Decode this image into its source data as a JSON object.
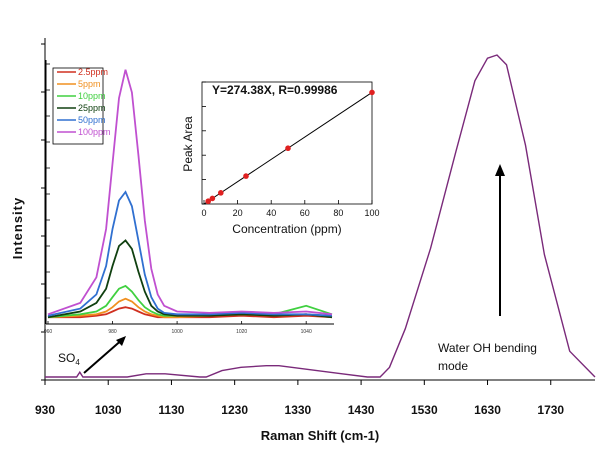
{
  "chart_data": [
    {
      "type": "line",
      "title": "",
      "xlabel": "Raman Shift (cm-1)",
      "ylabel": "Intensity",
      "xlim": [
        930,
        1800
      ],
      "x_ticks": [
        "930",
        "1030",
        "1130",
        "1230",
        "1330",
        "1430",
        "1530",
        "1630",
        "1730"
      ],
      "series": [
        {
          "x": [
            930,
            980,
            985,
            990,
            1000,
            1060,
            1090,
            1120,
            1175,
            1185,
            1210,
            1240,
            1280,
            1300,
            1320,
            1360,
            1400,
            1440,
            1460,
            1475,
            1500,
            1540,
            1580,
            1610,
            1630,
            1645,
            1660,
            1690,
            1720,
            1760,
            1800
          ],
          "y": [
            0.0,
            0.0,
            0.015,
            0.0,
            0.0,
            0.0,
            0.01,
            0.01,
            0.0,
            0.0,
            0.02,
            0.03,
            0.035,
            0.035,
            0.03,
            0.02,
            0.01,
            0.0,
            0.0,
            0.03,
            0.15,
            0.4,
            0.7,
            0.92,
            0.99,
            1.0,
            0.97,
            0.72,
            0.38,
            0.08,
            0.0
          ]
        }
      ],
      "annotations": [
        {
          "text": "SO",
          "sub": "4",
          "x": 985
        },
        {
          "text": "Water OH bending mode",
          "lines": [
            "Water OH bending",
            "mode"
          ],
          "x": 1640
        }
      ],
      "colors": {
        "main": "#7a2a7a",
        "arrow": "#000000"
      }
    },
    {
      "type": "line",
      "title": "",
      "xlim": [
        960,
        1048
      ],
      "x_ticks": [
        "960",
        "980",
        "1000",
        "1020",
        "1040"
      ],
      "legend": [
        "2.5ppm",
        "5ppm",
        "10ppm",
        "25ppm",
        "50ppm",
        "100ppm"
      ],
      "legend_placement": "top-left",
      "x": [
        960,
        970,
        975,
        978,
        980,
        982,
        984,
        986,
        988,
        990,
        992,
        994,
        996,
        1000,
        1010,
        1020,
        1030,
        1040,
        1048
      ],
      "series": [
        {
          "name": "2.5ppm",
          "color": "#d03020",
          "values": [
            0.01,
            0.01,
            0.015,
            0.02,
            0.03,
            0.04,
            0.045,
            0.04,
            0.03,
            0.02,
            0.015,
            0.01,
            0.01,
            0.01,
            0.01,
            0.015,
            0.01,
            0.015,
            0.01
          ]
        },
        {
          "name": "5ppm",
          "color": "#f09020",
          "values": [
            0.01,
            0.015,
            0.02,
            0.03,
            0.045,
            0.065,
            0.075,
            0.065,
            0.045,
            0.03,
            0.02,
            0.015,
            0.01,
            0.01,
            0.015,
            0.02,
            0.015,
            0.02,
            0.01
          ]
        },
        {
          "name": "10ppm",
          "color": "#40d040",
          "values": [
            0.01,
            0.02,
            0.03,
            0.05,
            0.08,
            0.11,
            0.12,
            0.1,
            0.07,
            0.045,
            0.03,
            0.02,
            0.015,
            0.015,
            0.02,
            0.02,
            0.02,
            0.05,
            0.02
          ]
        },
        {
          "name": "25ppm",
          "color": "#104010",
          "values": [
            0.01,
            0.03,
            0.06,
            0.11,
            0.19,
            0.26,
            0.28,
            0.25,
            0.17,
            0.1,
            0.05,
            0.03,
            0.02,
            0.015,
            0.015,
            0.02,
            0.015,
            0.02,
            0.01
          ]
        },
        {
          "name": "50ppm",
          "color": "#3070d0",
          "values": [
            0.015,
            0.04,
            0.09,
            0.19,
            0.32,
            0.42,
            0.45,
            0.4,
            0.28,
            0.16,
            0.08,
            0.04,
            0.025,
            0.02,
            0.02,
            0.025,
            0.02,
            0.02,
            0.015
          ]
        },
        {
          "name": "100ppm",
          "color": "#c050d0",
          "values": [
            0.02,
            0.06,
            0.15,
            0.32,
            0.55,
            0.78,
            0.88,
            0.8,
            0.58,
            0.35,
            0.18,
            0.09,
            0.05,
            0.03,
            0.025,
            0.03,
            0.025,
            0.03,
            0.02
          ]
        }
      ]
    },
    {
      "type": "scatter",
      "title": "Y=274.38X, R=0.99986",
      "xlabel": "Concentration (ppm)",
      "ylabel": "Peak Area",
      "xlim": [
        0,
        100
      ],
      "x_ticks": [
        "0",
        "20",
        "40",
        "60",
        "80",
        "100"
      ],
      "ylim": [
        0,
        30000
      ],
      "x": [
        2.5,
        5,
        10,
        25,
        50,
        100
      ],
      "y": [
        686,
        1372,
        2744,
        6860,
        13719,
        27438
      ],
      "fit": {
        "slope": 274.38,
        "intercept": 0
      },
      "colors": {
        "points": "#e02020",
        "fit": "#000000"
      }
    }
  ]
}
